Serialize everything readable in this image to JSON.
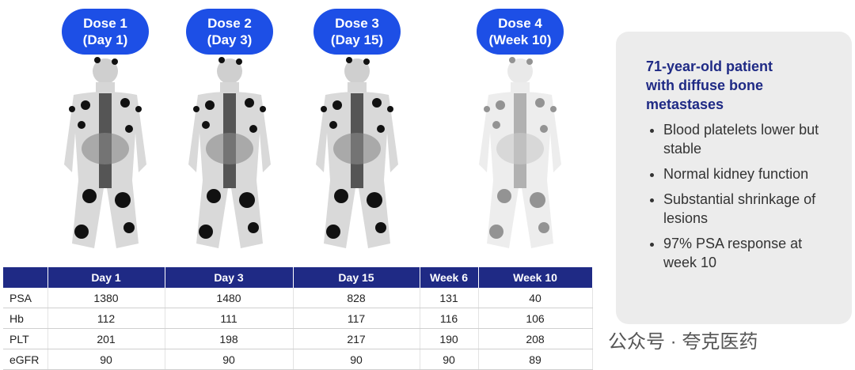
{
  "doses": [
    {
      "title": "Dose 1",
      "subtitle": "(Day 1)"
    },
    {
      "title": "Dose 2",
      "subtitle": "(Day 3)"
    },
    {
      "title": "Dose 3",
      "subtitle": "(Day 15)"
    },
    {
      "title": "Dose 4",
      "subtitle": "(Week 10)"
    }
  ],
  "table": {
    "columns": [
      "Day 1",
      "Day 3",
      "Day 15",
      "Week 6",
      "Week 10"
    ],
    "rows": [
      {
        "label": "PSA",
        "values": [
          1380,
          1480,
          828,
          131,
          40
        ]
      },
      {
        "label": "Hb",
        "values": [
          112,
          111,
          117,
          116,
          106
        ]
      },
      {
        "label": "PLT",
        "values": [
          201,
          198,
          217,
          190,
          208
        ]
      },
      {
        "label": "eGFR",
        "values": [
          90,
          90,
          90,
          90,
          89
        ]
      }
    ]
  },
  "sidebar": {
    "title": "71-year-old patient with diffuse bone metastases",
    "bullets": [
      "Blood platelets lower but stable",
      "Normal kidney function",
      "Substantial shrinkage of lesions",
      "97% PSA response at week 10"
    ]
  },
  "watermark": "公众号 · 夸克医药"
}
